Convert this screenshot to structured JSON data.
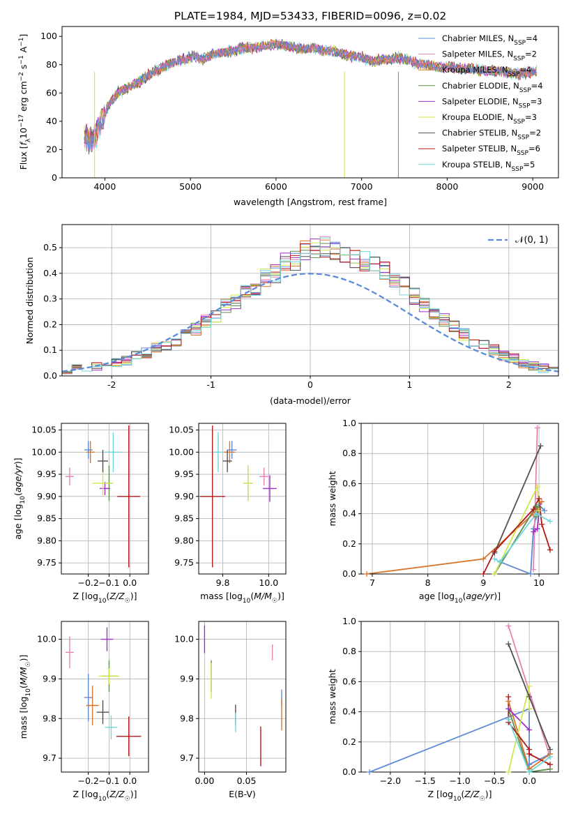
{
  "figure": {
    "title": "PLATE=1984, MJD=53433, FIBERID=0096, z=0.02"
  },
  "series_styles": [
    {
      "name": "Chabrier MILES, N_SSP=4",
      "color": "#5b8bd8"
    },
    {
      "name": "Salpeter MILES, N_SSP=2",
      "color": "#ea7fb4"
    },
    {
      "name": "Kroupa MILES, N_SSP=4",
      "color": "#d9752a"
    },
    {
      "name": "Chabrier ELODIE, N_SSP=4",
      "color": "#5d8e4f"
    },
    {
      "name": "Salpeter ELODIE, N_SSP=3",
      "color": "#9b2fc7"
    },
    {
      "name": "Kroupa ELODIE, N_SSP=3",
      "color": "#cfe84a"
    },
    {
      "name": "Chabrier STELIB, N_SSP=2",
      "color": "#505050"
    },
    {
      "name": "Salpeter STELIB, N_SSP=6",
      "color": "#b21818"
    },
    {
      "name": "Kroupa STELIB, N_SSP=5",
      "color": "#6fd8dc"
    }
  ],
  "chart_data": [
    {
      "id": "spectrum",
      "type": "line",
      "xlabel": "wavelength [Angstrom, rest frame]",
      "ylabel": "Flux [f_λ 10^-17 erg cm^-2 s^-1 A^-1]",
      "xlim": [
        3500,
        9300
      ],
      "ylim": [
        0,
        107
      ],
      "xticks": [
        4000,
        5000,
        6000,
        7000,
        8000,
        9000
      ],
      "yticks": [
        0,
        20,
        40,
        60,
        80,
        100
      ],
      "grid": false,
      "legend_position": "right",
      "x": [
        3750,
        3850,
        3950,
        4050,
        4150,
        4250,
        4350,
        4450,
        4550,
        4650,
        4750,
        4850,
        4950,
        5050,
        5150,
        5250,
        5350,
        5450,
        5550,
        5650,
        5750,
        5850,
        5950,
        6050,
        6150,
        6250,
        6350,
        6450,
        6550,
        6650,
        6750,
        6850,
        6950,
        7050,
        7150,
        7250,
        7350,
        7450,
        7550,
        7650,
        7750,
        7850,
        7950,
        8050,
        8150,
        8250,
        8350,
        8450,
        8550,
        8650,
        8750,
        8850,
        8950,
        9050
      ],
      "y": [
        30,
        25,
        38,
        52,
        60,
        63,
        66,
        70,
        74,
        77,
        80,
        83,
        84,
        86,
        84,
        87,
        88,
        89,
        91,
        92,
        92,
        93,
        94,
        94,
        93,
        92,
        91,
        92,
        90,
        90,
        88,
        86,
        86,
        84,
        82,
        84,
        84,
        85,
        83,
        81,
        80,
        79,
        78,
        78,
        77,
        77,
        76,
        76,
        75,
        75,
        74,
        74,
        74,
        76
      ],
      "dips": [
        {
          "series": "Kroupa ELODIE, N_SSP=3",
          "x": 3880,
          "y": 0
        },
        {
          "series": "Kroupa ELODIE, N_SSP=3",
          "x": 6800,
          "y": 0
        },
        {
          "series": "Kroupa MILES, N_SSP=4",
          "x": 7430,
          "y": 0
        }
      ]
    },
    {
      "id": "residuals",
      "type": "histogram",
      "xlabel": "(data-model)/error",
      "ylabel": "Normed distribution",
      "xlim": [
        -2.5,
        2.5
      ],
      "ylim": [
        0,
        0.59
      ],
      "xticks": [
        -2,
        -1,
        0,
        1,
        2
      ],
      "yticks": [
        0.0,
        0.1,
        0.2,
        0.3,
        0.4,
        0.5
      ],
      "grid": true,
      "legend": [
        "𝒩(0, 1)"
      ],
      "legend_position": "top-right",
      "bin_edges_start": -2.5,
      "bin_width": 0.1,
      "base_density": [
        0.02,
        0.03,
        0.03,
        0.04,
        0.05,
        0.05,
        0.06,
        0.08,
        0.09,
        0.11,
        0.12,
        0.14,
        0.16,
        0.18,
        0.21,
        0.23,
        0.27,
        0.29,
        0.32,
        0.34,
        0.38,
        0.4,
        0.44,
        0.45,
        0.49,
        0.5,
        0.5,
        0.48,
        0.47,
        0.46,
        0.45,
        0.43,
        0.41,
        0.38,
        0.35,
        0.31,
        0.28,
        0.25,
        0.22,
        0.19,
        0.16,
        0.14,
        0.12,
        0.1,
        0.08,
        0.07,
        0.05,
        0.04,
        0.03,
        0.02
      ],
      "gaussian": {
        "mean": 0,
        "sigma": 1,
        "color": "#5b8bd8"
      }
    },
    {
      "id": "age-vs-Z",
      "type": "errorbar",
      "xlabel": "Z [log10(Z/Z☉)]",
      "ylabel": "age  [log10(age/yr)]",
      "xlim": [
        -0.33,
        0.09
      ],
      "ylim": [
        9.725,
        10.065
      ],
      "xticks": [
        -0.2,
        -0.1,
        0.0
      ],
      "xticklabels": [
        "−0.2",
        "−0.1",
        "0.0"
      ],
      "yticks": [
        9.75,
        9.8,
        9.85,
        9.9,
        9.95,
        10.0,
        10.05
      ],
      "grid": true,
      "points": [
        {
          "x": -0.2,
          "y": 10.005,
          "xerr": 0.02,
          "yerr": 0.02,
          "c": 0
        },
        {
          "x": -0.29,
          "y": 9.945,
          "xerr": 0.02,
          "yerr": 0.02,
          "c": 1
        },
        {
          "x": -0.19,
          "y": 10.0,
          "xerr": 0.02,
          "yerr": 0.025,
          "c": 2
        },
        {
          "x": -0.1,
          "y": 9.93,
          "xerr": 0.015,
          "yerr": 0.04,
          "c": 3
        },
        {
          "x": -0.12,
          "y": 9.918,
          "xerr": 0.025,
          "yerr": 0.015,
          "c": 4
        },
        {
          "x": -0.13,
          "y": 9.93,
          "xerr": 0.05,
          "yerr": 0.03,
          "c": 5
        },
        {
          "x": -0.13,
          "y": 9.98,
          "xerr": 0.025,
          "yerr": 0.025,
          "c": 6
        },
        {
          "x": -0.005,
          "y": 9.9,
          "xerr": 0.055,
          "yerr": 0.16,
          "c": 7
        },
        {
          "x": -0.08,
          "y": 10.0,
          "xerr": 0.04,
          "yerr": 0.045,
          "c": 8
        }
      ]
    },
    {
      "id": "age-vs-mass",
      "type": "errorbar",
      "xlabel": "mass [log10(M/M☉)]",
      "ylabel": "",
      "xlim": [
        9.695,
        10.075
      ],
      "ylim": [
        9.725,
        10.065
      ],
      "xticks": [
        9.8,
        10.0
      ],
      "xticklabels": [
        "9.8",
        "10.0"
      ],
      "yticks": [
        9.75,
        9.8,
        9.85,
        9.9,
        9.95,
        10.0,
        10.05
      ],
      "grid": true,
      "points": [
        {
          "x": 9.84,
          "y": 10.005,
          "xerr": 0.02,
          "yerr": 0.02,
          "c": 0
        },
        {
          "x": 9.98,
          "y": 9.945,
          "xerr": 0.02,
          "yerr": 0.02,
          "c": 1
        },
        {
          "x": 9.83,
          "y": 10.0,
          "xerr": 0.025,
          "yerr": 0.025,
          "c": 2
        },
        {
          "x": 9.91,
          "y": 9.93,
          "xerr": 0.02,
          "yerr": 0.04,
          "c": 3
        },
        {
          "x": 10.005,
          "y": 9.918,
          "xerr": 0.03,
          "yerr": 0.03,
          "c": 4
        },
        {
          "x": 9.91,
          "y": 9.93,
          "xerr": 0.02,
          "yerr": 0.04,
          "c": 5
        },
        {
          "x": 9.82,
          "y": 9.98,
          "xerr": 0.02,
          "yerr": 0.025,
          "c": 6
        },
        {
          "x": 9.755,
          "y": 9.9,
          "xerr": 0.055,
          "yerr": 0.16,
          "c": 7
        },
        {
          "x": 9.78,
          "y": 10.0,
          "xerr": 0.02,
          "yerr": 0.045,
          "c": 8
        }
      ]
    },
    {
      "id": "weight-vs-age",
      "type": "line",
      "xlabel": "age  [log10(age/yr)]",
      "ylabel": "mass weight",
      "xlim": [
        6.8,
        10.35
      ],
      "ylim": [
        0,
        1.0
      ],
      "xticks": [
        7,
        8,
        9,
        10
      ],
      "yticks": [
        0.0,
        0.2,
        0.4,
        0.6,
        0.8,
        1.0
      ],
      "grid": true,
      "series": [
        {
          "c": 0,
          "x": [
            9.3,
            9.85,
            9.9,
            10.0,
            10.1
          ],
          "y": [
            0.08,
            0.0,
            0.3,
            0.46,
            0.42
          ]
        },
        {
          "c": 1,
          "x": [
            9.9,
            9.97
          ],
          "y": [
            0.03,
            0.97
          ]
        },
        {
          "c": 2,
          "x": [
            6.9,
            9.0,
            9.9,
            10.05
          ],
          "y": [
            0.0,
            0.1,
            0.4,
            0.48
          ]
        },
        {
          "c": 3,
          "x": [
            9.2,
            9.95,
            10.0,
            9.95
          ],
          "y": [
            0.0,
            0.45,
            0.44,
            0.38
          ]
        },
        {
          "c": 4,
          "x": [
            9.9,
            9.97,
            10.0
          ],
          "y": [
            0.28,
            0.3,
            0.42
          ]
        },
        {
          "c": 5,
          "x": [
            9.2,
            9.97,
            10.0
          ],
          "y": [
            0.0,
            0.58,
            0.42
          ]
        },
        {
          "c": 6,
          "x": [
            9.2,
            10.03
          ],
          "y": [
            0.14,
            0.85
          ]
        },
        {
          "c": 7,
          "x": [
            9.0,
            9.2,
            9.9,
            10.0,
            10.05,
            10.2
          ],
          "y": [
            0.0,
            0.15,
            0.43,
            0.5,
            0.33,
            0.16
          ]
        },
        {
          "c": 8,
          "x": [
            9.2,
            9.3,
            9.95,
            10.2
          ],
          "y": [
            0.1,
            0.08,
            0.4,
            0.35
          ]
        }
      ]
    },
    {
      "id": "mass-vs-Z",
      "type": "errorbar",
      "xlabel": "Z [log10(Z/Z☉)]",
      "ylabel": "mass [log10(M/M☉)]",
      "xlim": [
        -0.33,
        0.09
      ],
      "ylim": [
        9.665,
        10.045
      ],
      "xticks": [
        -0.2,
        -0.1,
        0.0
      ],
      "xticklabels": [
        "−0.2",
        "−0.1",
        "0.0"
      ],
      "yticks": [
        9.7,
        9.8,
        9.9,
        10.0
      ],
      "grid": true,
      "points": [
        {
          "x": -0.2,
          "y": 9.853,
          "xerr": 0.02,
          "yerr": 0.06,
          "c": 0
        },
        {
          "x": -0.29,
          "y": 9.967,
          "xerr": 0.02,
          "yerr": 0.04,
          "c": 1
        },
        {
          "x": -0.18,
          "y": 9.833,
          "xerr": 0.03,
          "yerr": 0.05,
          "c": 2
        },
        {
          "x": -0.1,
          "y": 9.907,
          "xerr": 0.035,
          "yerr": 0.04,
          "c": 3
        },
        {
          "x": -0.11,
          "y": 10.0,
          "xerr": 0.03,
          "yerr": 0.03,
          "c": 4
        },
        {
          "x": -0.1,
          "y": 9.907,
          "xerr": 0.05,
          "yerr": 0.02,
          "c": 5
        },
        {
          "x": -0.13,
          "y": 9.816,
          "xerr": 0.03,
          "yerr": 0.03,
          "c": 6
        },
        {
          "x": -0.005,
          "y": 9.755,
          "xerr": 0.06,
          "yerr": 0.05,
          "c": 7
        },
        {
          "x": -0.09,
          "y": 9.778,
          "xerr": 0.03,
          "yerr": 0.03,
          "c": 8
        }
      ]
    },
    {
      "id": "mass-vs-ebv",
      "type": "errorbar",
      "xlabel": "E(B-V)",
      "ylabel": "",
      "xlim": [
        -0.007,
        0.097
      ],
      "ylim": [
        9.665,
        10.045
      ],
      "xticks": [
        0.0,
        0.05
      ],
      "xticklabels": [
        "0.00",
        "0.05"
      ],
      "yticks": [
        9.7,
        9.8,
        9.9,
        10.0
      ],
      "grid": true,
      "points": [
        {
          "x": 0.092,
          "y": 9.853,
          "xerr": 0,
          "yerr": 0.02,
          "c": 0
        },
        {
          "x": 0.081,
          "y": 9.967,
          "xerr": 0,
          "yerr": 0.02,
          "c": 1
        },
        {
          "x": 0.092,
          "y": 9.81,
          "xerr": 0,
          "yerr": 0.04,
          "c": 2
        },
        {
          "x": 0.008,
          "y": 9.907,
          "xerr": 0,
          "yerr": 0.04,
          "c": 3
        },
        {
          "x": 0.0,
          "y": 10.0,
          "xerr": 0,
          "yerr": 0.035,
          "c": 4
        },
        {
          "x": 0.008,
          "y": 9.895,
          "xerr": 0,
          "yerr": 0.045,
          "c": 5
        },
        {
          "x": 0.037,
          "y": 9.81,
          "xerr": 0,
          "yerr": 0.025,
          "c": 6
        },
        {
          "x": 0.067,
          "y": 9.73,
          "xerr": 0,
          "yerr": 0.05,
          "c": 7
        },
        {
          "x": 0.037,
          "y": 9.79,
          "xerr": 0,
          "yerr": 0.025,
          "c": 8
        }
      ]
    },
    {
      "id": "weight-vs-Z",
      "type": "line",
      "xlabel": "Z [log10(Z/Z☉)]",
      "ylabel": "mass weight",
      "xlim": [
        -2.42,
        0.42
      ],
      "ylim": [
        0,
        1.0
      ],
      "xticks": [
        -2.0,
        -1.5,
        -1.0,
        -0.5,
        0.0
      ],
      "xticklabels": [
        "−2.0",
        "−1.5",
        "−1.0",
        "−0.5",
        "0.0"
      ],
      "yticks": [
        0.0,
        0.2,
        0.4,
        0.6,
        0.8,
        1.0
      ],
      "grid": true,
      "series": [
        {
          "c": 0,
          "x": [
            -2.3,
            0.0,
            0.0,
            0.3
          ],
          "y": [
            0.0,
            0.42,
            0.05,
            0.12
          ]
        },
        {
          "c": 1,
          "x": [
            -0.3,
            0.3
          ],
          "y": [
            0.97,
            0.1
          ]
        },
        {
          "c": 2,
          "x": [
            -0.3,
            0.0,
            0.3
          ],
          "y": [
            0.47,
            0.02,
            0.12
          ]
        },
        {
          "c": 3,
          "x": [
            -0.3,
            0.0,
            0.3
          ],
          "y": [
            0.42,
            0.0,
            0.02
          ]
        },
        {
          "c": 4,
          "x": [
            -0.3,
            0.0
          ],
          "y": [
            0.42,
            0.28
          ]
        },
        {
          "c": 5,
          "x": [
            -0.3,
            0.0,
            0.0
          ],
          "y": [
            0.0,
            0.57,
            0.42
          ]
        },
        {
          "c": 6,
          "x": [
            -0.3,
            0.0,
            0.3
          ],
          "y": [
            0.85,
            0.5,
            0.15
          ]
        },
        {
          "c": 7,
          "x": [
            -0.3,
            -0.3,
            0.0,
            0.0,
            0.3
          ],
          "y": [
            0.5,
            0.33,
            0.15,
            0.12,
            0.05
          ]
        },
        {
          "c": 8,
          "x": [
            -0.3,
            0.0,
            0.3
          ],
          "y": [
            0.35,
            0.0,
            0.1
          ]
        }
      ]
    }
  ]
}
